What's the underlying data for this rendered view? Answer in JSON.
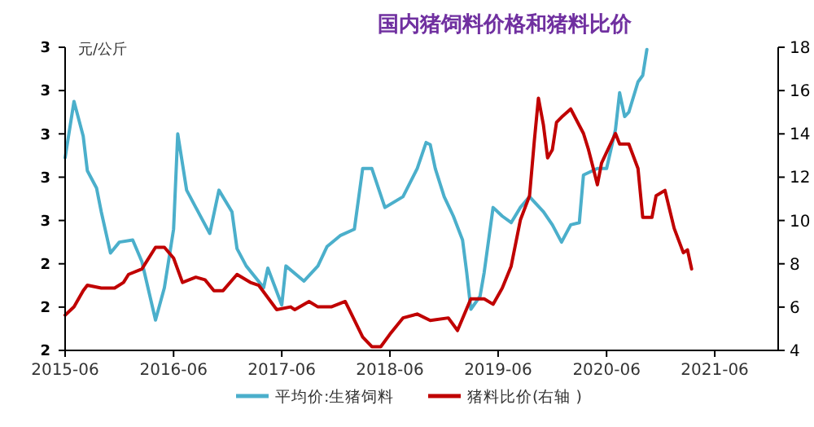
{
  "chart_data": {
    "type": "line",
    "title": "国内猪饲料价格和猪料比价",
    "ylabel": "元/公斤",
    "legend": "bottom",
    "grid": false,
    "marker": "none",
    "line_style": "solid",
    "xlim": [
      "2015-06",
      "2022-01"
    ],
    "xticks": [
      {
        "value": "2015-06",
        "label": "2015-06"
      },
      {
        "value": "2016-06",
        "label": "2016-06"
      },
      {
        "value": "2017-06",
        "label": "2017-06"
      },
      {
        "value": "2018-06",
        "label": "2018-06"
      },
      {
        "value": "2019-06",
        "label": "2019-06"
      },
      {
        "value": "2020-06",
        "label": "2020-06"
      },
      {
        "value": "2021-06",
        "label": "2021-06"
      }
    ],
    "ylim": [
      2.0,
      3.4
    ],
    "yticks": [
      {
        "value": 2.0,
        "label": "2"
      },
      {
        "value": 2.2,
        "label": "2"
      },
      {
        "value": 2.4,
        "label": "2"
      },
      {
        "value": 2.6,
        "label": "3"
      },
      {
        "value": 2.8,
        "label": "3"
      },
      {
        "value": 3.0,
        "label": "3"
      },
      {
        "value": 3.2,
        "label": "3"
      },
      {
        "value": 3.4,
        "label": "3"
      }
    ],
    "y2lim": [
      4,
      18
    ],
    "y2ticks": [
      4,
      6,
      8,
      10,
      12,
      14,
      16,
      18
    ],
    "series": [
      {
        "name": "平均价:生猪饲料",
        "color": "#4bafcb",
        "x": [
          "2015-06-01",
          "2015-07-01",
          "2015-08-01",
          "2015-08-15",
          "2015-09-15",
          "2015-10-01",
          "2015-11-01",
          "2015-12-01",
          "2016-01-15",
          "2016-02-15",
          "2016-03-15",
          "2016-04-01",
          "2016-05-01",
          "2016-06-01",
          "2016-06-15",
          "2016-07-15",
          "2016-08-15",
          "2016-10-01",
          "2016-11-01",
          "2016-12-15",
          "2017-01-01",
          "2017-02-01",
          "2017-04-01",
          "2017-04-15",
          "2017-06-01",
          "2017-06-15",
          "2017-08-15",
          "2017-10-01",
          "2017-11-01",
          "2017-12-15",
          "2018-02-01",
          "2018-03-01",
          "2018-04-01",
          "2018-05-15",
          "2018-07-15",
          "2018-09-01",
          "2018-10-01",
          "2018-10-15",
          "2018-11-01",
          "2018-12-01",
          "2019-01-01",
          "2019-02-01",
          "2019-02-15",
          "2019-03-01",
          "2019-04-01",
          "2019-04-15",
          "2019-05-15",
          "2019-06-15",
          "2019-07-15",
          "2019-08-15",
          "2019-09-15",
          "2019-11-01",
          "2019-12-01",
          "2020-01-01",
          "2020-02-01",
          "2020-03-01",
          "2020-03-15",
          "2020-05-01",
          "2020-06-01",
          "2020-07-01",
          "2020-07-15",
          "2020-08-01",
          "2020-08-15",
          "2020-09-15",
          "2020-10-01",
          "2020-10-15"
        ],
        "values": [
          2.89,
          3.15,
          2.99,
          2.83,
          2.75,
          2.64,
          2.45,
          2.5,
          2.51,
          2.41,
          2.24,
          2.14,
          2.29,
          2.56,
          3.0,
          2.74,
          2.66,
          2.54,
          2.74,
          2.64,
          2.47,
          2.39,
          2.29,
          2.38,
          2.21,
          2.39,
          2.32,
          2.39,
          2.48,
          2.53,
          2.56,
          2.84,
          2.84,
          2.66,
          2.71,
          2.84,
          2.96,
          2.95,
          2.84,
          2.71,
          2.62,
          2.51,
          2.36,
          2.19,
          2.25,
          2.36,
          2.66,
          2.62,
          2.59,
          2.66,
          2.71,
          2.64,
          2.58,
          2.5,
          2.58,
          2.59,
          2.81,
          2.84,
          2.84,
          3.02,
          3.19,
          3.08,
          3.1,
          3.24,
          3.27,
          3.39
        ]
      },
      {
        "name": "猪料比价(右轴 )",
        "color": "#c00000",
        "axis": "y2",
        "x": [
          "2015-06-01",
          "2015-07-01",
          "2015-08-01",
          "2015-08-15",
          "2015-10-01",
          "2015-11-15",
          "2015-12-15",
          "2016-01-01",
          "2016-02-15",
          "2016-04-01",
          "2016-05-01",
          "2016-06-01",
          "2016-07-01",
          "2016-08-15",
          "2016-09-15",
          "2016-10-15",
          "2016-11-15",
          "2017-01-01",
          "2017-02-15",
          "2017-03-15",
          "2017-05-15",
          "2017-07-01",
          "2017-07-15",
          "2017-09-01",
          "2017-10-01",
          "2017-11-15",
          "2018-01-01",
          "2018-01-15",
          "2018-03-01",
          "2018-04-01",
          "2018-05-01",
          "2018-06-01",
          "2018-07-15",
          "2018-09-01",
          "2018-10-15",
          "2018-12-15",
          "2019-01-15",
          "2019-03-01",
          "2019-04-15",
          "2019-05-15",
          "2019-06-15",
          "2019-07-15",
          "2019-08-15",
          "2019-09-15",
          "2019-10-01",
          "2019-10-15",
          "2019-11-01",
          "2019-11-15",
          "2019-12-01",
          "2019-12-15",
          "2020-01-01",
          "2020-02-01",
          "2020-03-15",
          "2020-04-01",
          "2020-04-15",
          "2020-05-01",
          "2020-05-15",
          "2020-07-01",
          "2020-07-15",
          "2020-08-15",
          "2020-09-15",
          "2020-10-01",
          "2020-11-01",
          "2020-11-15",
          "2020-12-15",
          "2021-01-15",
          "2021-02-15",
          "2021-03-01",
          "2021-03-15"
        ],
        "values": [
          5.63,
          6.01,
          6.76,
          7.01,
          6.88,
          6.88,
          7.14,
          7.51,
          7.76,
          8.76,
          8.76,
          8.26,
          7.14,
          7.38,
          7.26,
          6.76,
          6.76,
          7.51,
          7.14,
          7.01,
          5.88,
          6.01,
          5.88,
          6.26,
          6.01,
          6.01,
          6.26,
          5.88,
          4.62,
          4.17,
          4.17,
          4.75,
          5.5,
          5.68,
          5.38,
          5.5,
          4.92,
          6.38,
          6.38,
          6.13,
          6.88,
          7.89,
          10.02,
          11.14,
          13.65,
          15.65,
          14.4,
          12.89,
          13.27,
          14.53,
          14.77,
          15.15,
          14.02,
          13.27,
          12.52,
          11.65,
          12.65,
          14.02,
          13.53,
          13.53,
          12.4,
          10.14,
          10.14,
          11.14,
          11.39,
          9.64,
          8.51,
          8.64,
          7.76
        ]
      }
    ]
  }
}
